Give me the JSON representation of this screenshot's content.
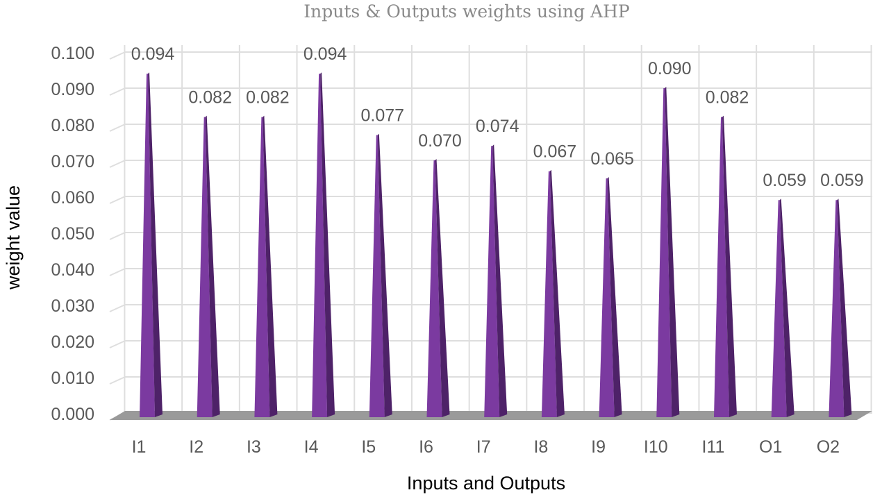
{
  "chart_data": {
    "type": "bar",
    "title": "Inputs & Outputs weights using AHP",
    "xlabel": "Inputs and Outputs",
    "ylabel": "weight value",
    "categories": [
      "I1",
      "I2",
      "I3",
      "I4",
      "I5",
      "I6",
      "I7",
      "I8",
      "I9",
      "I10",
      "I11",
      "O1",
      "O2"
    ],
    "values": [
      0.094,
      0.082,
      0.082,
      0.094,
      0.077,
      0.07,
      0.074,
      0.067,
      0.065,
      0.09,
      0.082,
      0.059,
      0.059
    ],
    "value_labels": [
      "0.094",
      "0.082",
      "0.082",
      "0.094",
      "0.077",
      "0.070",
      "0.074",
      "0.067",
      "0.065",
      "0.090",
      "0.082",
      "0.059",
      "0.059"
    ],
    "ylim": [
      0,
      0.1
    ],
    "yticks": [
      "0.000",
      "0.010",
      "0.020",
      "0.030",
      "0.040",
      "0.050",
      "0.060",
      "0.070",
      "0.080",
      "0.090",
      "0.100"
    ],
    "grid": true,
    "legend": "none",
    "colors": {
      "bar_front": "#7b3aa0",
      "bar_side": "#4e2268",
      "grid": "#dedede",
      "floor": "#9a9a9a"
    }
  }
}
